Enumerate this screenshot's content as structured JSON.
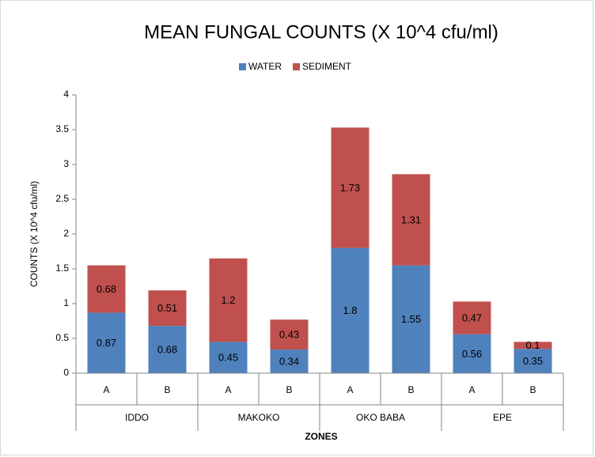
{
  "chart_data": {
    "type": "stacked_bar",
    "title": "MEAN FUNGAL COUNTS (X 10^4 cfu/ml)",
    "x_label": "ZONES",
    "y_label": "COUNTS (X 10^4 cfu/ml)",
    "categories": [
      "A",
      "B",
      "A",
      "B",
      "A",
      "B",
      "A",
      "B"
    ],
    "groups": [
      "IDDO",
      "MAKOKO",
      "OKO BABA",
      "EPE"
    ],
    "series": [
      {
        "name": "WATER",
        "color": "#4f81bd",
        "values": [
          0.87,
          0.68,
          0.45,
          0.34,
          1.8,
          1.55,
          0.56,
          0.35
        ]
      },
      {
        "name": "SEDIMENT",
        "color": "#c0504d",
        "values": [
          0.68,
          0.51,
          1.2,
          0.43,
          1.73,
          1.31,
          0.47,
          0.1
        ]
      }
    ],
    "ylim": [
      0,
      4
    ],
    "yticks": [
      0,
      0.5,
      1,
      1.5,
      2,
      2.5,
      3,
      3.5,
      4
    ],
    "grid": false,
    "legend": "top"
  }
}
